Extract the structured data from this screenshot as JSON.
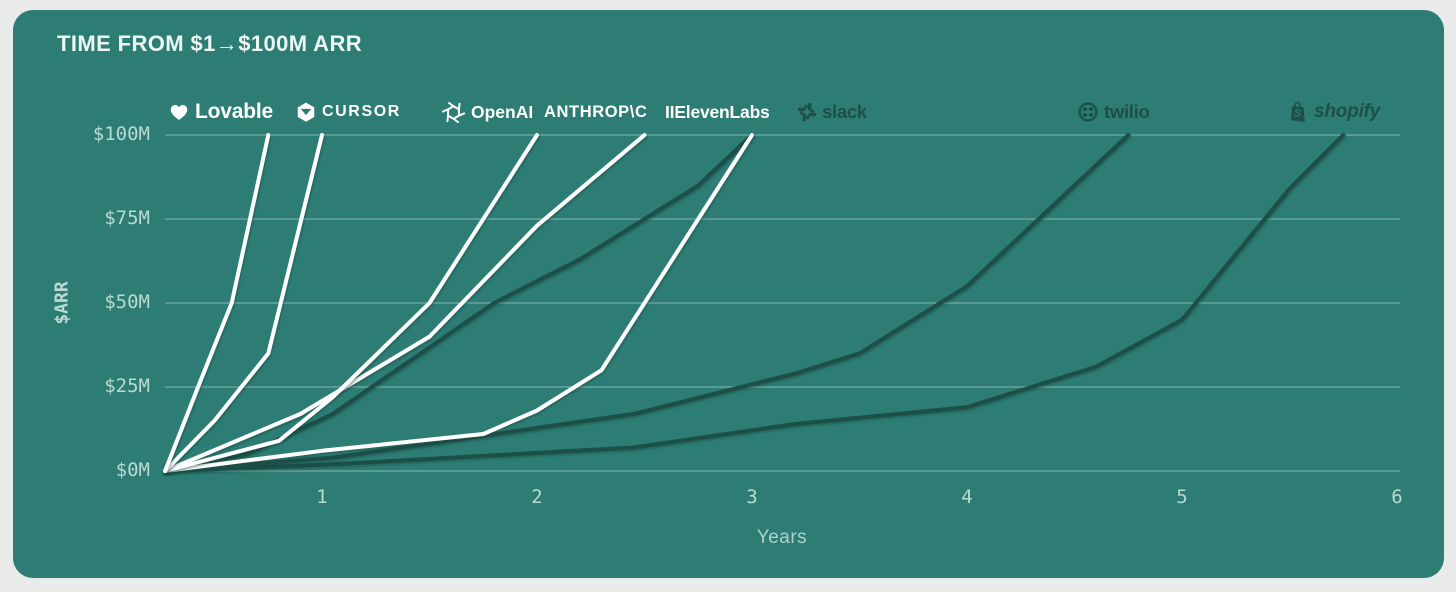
{
  "header": {
    "title": "TIME FROM $1→$100M ARR"
  },
  "colors": {
    "page_bg": "#e9ebea",
    "card_bg": "#2d7d75",
    "light_text": "#ecf7f4",
    "tick_text": "#b9dad3",
    "grid_line": "rgba(234,249,246,0.38)",
    "line_white": "#ffffff",
    "line_dark": "#1d4f49",
    "logo_dark": "#1d5049",
    "line_shadow": "#16443e"
  },
  "logos": [
    {
      "name": "lovable",
      "label": "Lovable",
      "icon": "heart-icon",
      "tone": "light"
    },
    {
      "name": "cursor",
      "label": "CURSOR",
      "icon": "cube-icon",
      "tone": "light"
    },
    {
      "name": "openai",
      "label": "OpenAI",
      "icon": "openai-swirl-icon",
      "tone": "light"
    },
    {
      "name": "anthropic",
      "label": "ANTHROP\\C",
      "icon": "",
      "tone": "light"
    },
    {
      "name": "elevenlabs",
      "label": "IIElevenLabs",
      "icon": "",
      "tone": "light"
    },
    {
      "name": "slack",
      "label": "slack",
      "icon": "slack-pinwheel-icon",
      "tone": "dark"
    },
    {
      "name": "twilio",
      "label": "twilio",
      "icon": "twilio-circle-icon",
      "tone": "dark"
    },
    {
      "name": "shopify",
      "label": "shopify",
      "icon": "shopify-bag-icon",
      "tone": "dark"
    }
  ],
  "chart_data": {
    "type": "line",
    "title": "TIME FROM $1→$100M ARR",
    "xlabel": "Years",
    "ylabel": "$ARR",
    "xlim": [
      0.27,
      6
    ],
    "ylim": [
      0,
      100
    ],
    "grid": "horizontal gridlines only",
    "legend_position": "company logos above plot, ordered fastest to slowest",
    "x_ticks": [
      {
        "value": 1,
        "label": "1"
      },
      {
        "value": 2,
        "label": "2"
      },
      {
        "value": 3,
        "label": "3"
      },
      {
        "value": 4,
        "label": "4"
      },
      {
        "value": 5,
        "label": "5"
      },
      {
        "value": 6,
        "label": "6"
      }
    ],
    "y_ticks": [
      {
        "value": 100,
        "label": "$100M"
      },
      {
        "value": 75,
        "label": "$75M"
      },
      {
        "value": 50,
        "label": "$50M"
      },
      {
        "value": 25,
        "label": "$25M"
      },
      {
        "value": 0,
        "label": "$0M"
      }
    ],
    "series": [
      {
        "name": "Lovable",
        "color_role": "white",
        "years_to_100m": 0.75,
        "points": [
          [
            0.27,
            0
          ],
          [
            0.43,
            26
          ],
          [
            0.58,
            50
          ],
          [
            0.75,
            100
          ]
        ]
      },
      {
        "name": "Cursor",
        "color_role": "white",
        "years_to_100m": 1.0,
        "points": [
          [
            0.27,
            0
          ],
          [
            0.5,
            15
          ],
          [
            0.75,
            35
          ],
          [
            1.0,
            100
          ]
        ]
      },
      {
        "name": "OpenAI",
        "color_role": "white",
        "years_to_100m": 2.0,
        "points": [
          [
            0.27,
            0
          ],
          [
            0.8,
            9
          ],
          [
            1.05,
            22
          ],
          [
            1.5,
            50
          ],
          [
            2.0,
            100
          ]
        ]
      },
      {
        "name": "Anthropic",
        "color_role": "white",
        "years_to_100m": 2.5,
        "points": [
          [
            0.27,
            0
          ],
          [
            0.9,
            17
          ],
          [
            1.5,
            40
          ],
          [
            2.0,
            73
          ],
          [
            2.5,
            100
          ]
        ]
      },
      {
        "name": "ElevenLabs",
        "color_role": "white",
        "years_to_100m": 3.0,
        "points": [
          [
            0.27,
            0
          ],
          [
            1.0,
            6
          ],
          [
            1.75,
            11
          ],
          [
            2.0,
            18
          ],
          [
            2.3,
            30
          ],
          [
            3.0,
            100
          ]
        ]
      },
      {
        "name": "Slack",
        "color_role": "dark",
        "years_to_100m": 3.0,
        "points": [
          [
            0.27,
            0
          ],
          [
            0.65,
            5
          ],
          [
            1.05,
            17
          ],
          [
            1.8,
            50
          ],
          [
            2.2,
            63
          ],
          [
            2.75,
            85
          ],
          [
            3.0,
            100
          ]
        ]
      },
      {
        "name": "Twilio",
        "color_role": "dark",
        "years_to_100m": 4.75,
        "points": [
          [
            0.27,
            0
          ],
          [
            1.05,
            4
          ],
          [
            1.7,
            10
          ],
          [
            2.45,
            17
          ],
          [
            3.2,
            29
          ],
          [
            3.5,
            35
          ],
          [
            4.0,
            55
          ],
          [
            4.75,
            100
          ]
        ]
      },
      {
        "name": "Shopify",
        "color_role": "dark",
        "years_to_100m": 5.75,
        "points": [
          [
            0.27,
            0
          ],
          [
            1.05,
            2
          ],
          [
            2.45,
            7
          ],
          [
            3.2,
            14
          ],
          [
            4.0,
            19
          ],
          [
            4.6,
            31
          ],
          [
            5.0,
            45
          ],
          [
            5.5,
            84
          ],
          [
            5.75,
            100
          ]
        ]
      }
    ]
  }
}
